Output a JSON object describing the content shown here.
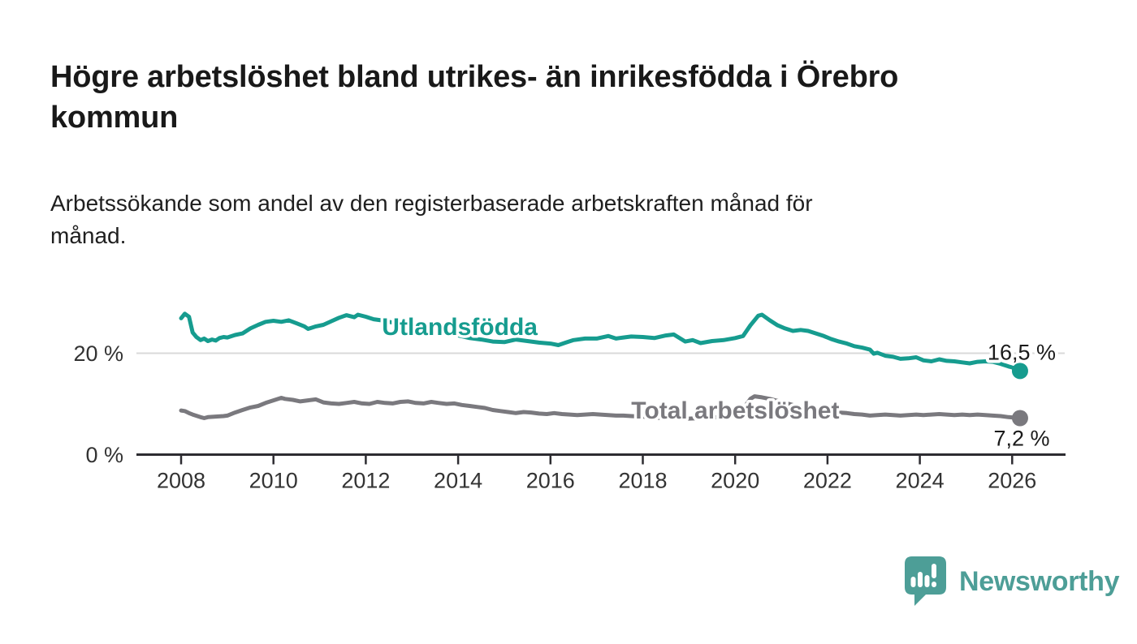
{
  "header": {
    "title": "Högre arbetslöshet bland utrikes- än inrikesfödda i Örebro kommun",
    "title_lines": [
      "Högre arbetslöshet bland utrikes- än inrikesfödda i Örebro",
      "kommun"
    ],
    "subtitle": "Arbetssökande som andel av den registerbaserade arbetskraften månad för månad.",
    "subtitle_lines": [
      "Arbetssökande som andel av den registerbaserade arbetskraften månad för",
      "månad."
    ]
  },
  "colors": {
    "teal": "#169c8f",
    "gray": "#7a797e",
    "grid": "#d9d9d9",
    "axis": "#2d2c31",
    "tick_text": "#333333",
    "value_text": "#1a1a1a",
    "logo_teal": "#4d9e97"
  },
  "chart_data": {
    "type": "line",
    "title": "Högre arbetslöshet bland utrikes- än inrikesfödda i Örebro kommun",
    "subtitle": "Arbetssökande som andel av den registerbaserade arbetskraften månad för månad.",
    "grid": "single horizontal gridline at 20 %",
    "legend_position": "inline labels on lines",
    "x_axis": {
      "range": [
        2007.05,
        2027.15
      ],
      "ticks": [
        2008,
        2010,
        2012,
        2014,
        2016,
        2018,
        2020,
        2022,
        2024,
        2026
      ]
    },
    "y_axis": {
      "range": [
        0,
        30
      ],
      "ticks": [
        {
          "value": 0,
          "label": "0 %"
        },
        {
          "value": 20,
          "label": "20 %"
        }
      ]
    },
    "series": [
      {
        "name": "Utlandsfödda",
        "color": "#169c8f",
        "end_label": "16,5 %",
        "end_label_side": "above",
        "label_pos": {
          "year": 2012.35,
          "value": 23.6
        },
        "points": [
          [
            2008.0,
            26.9
          ],
          [
            2008.08,
            27.8
          ],
          [
            2008.17,
            27.2
          ],
          [
            2008.25,
            24.1
          ],
          [
            2008.33,
            23.2
          ],
          [
            2008.42,
            22.6
          ],
          [
            2008.5,
            22.9
          ],
          [
            2008.58,
            22.4
          ],
          [
            2008.67,
            22.7
          ],
          [
            2008.75,
            22.5
          ],
          [
            2008.83,
            23.0
          ],
          [
            2008.92,
            23.2
          ],
          [
            2009.0,
            23.1
          ],
          [
            2009.17,
            23.6
          ],
          [
            2009.33,
            23.9
          ],
          [
            2009.5,
            24.9
          ],
          [
            2009.67,
            25.6
          ],
          [
            2009.83,
            26.2
          ],
          [
            2010.0,
            26.4
          ],
          [
            2010.17,
            26.2
          ],
          [
            2010.33,
            26.5
          ],
          [
            2010.5,
            25.9
          ],
          [
            2010.67,
            25.3
          ],
          [
            2010.75,
            24.8
          ],
          [
            2010.92,
            25.3
          ],
          [
            2011.08,
            25.6
          ],
          [
            2011.25,
            26.3
          ],
          [
            2011.42,
            27.0
          ],
          [
            2011.58,
            27.5
          ],
          [
            2011.75,
            27.1
          ],
          [
            2011.83,
            27.6
          ],
          [
            2012.0,
            27.2
          ],
          [
            2012.17,
            26.7
          ],
          [
            2012.33,
            26.5
          ],
          [
            2012.5,
            26.2
          ],
          [
            2012.75,
            25.8
          ],
          [
            2013.0,
            25.4
          ],
          [
            2013.25,
            24.9
          ],
          [
            2013.5,
            24.4
          ],
          [
            2013.75,
            23.9
          ],
          [
            2014.0,
            23.5
          ],
          [
            2014.25,
            23.0
          ],
          [
            2014.5,
            22.7
          ],
          [
            2014.75,
            22.3
          ],
          [
            2015.0,
            22.2
          ],
          [
            2015.25,
            22.7
          ],
          [
            2015.5,
            22.4
          ],
          [
            2015.75,
            22.1
          ],
          [
            2016.0,
            21.9
          ],
          [
            2016.17,
            21.6
          ],
          [
            2016.33,
            22.1
          ],
          [
            2016.5,
            22.6
          ],
          [
            2016.75,
            22.9
          ],
          [
            2017.0,
            22.9
          ],
          [
            2017.25,
            23.4
          ],
          [
            2017.42,
            22.9
          ],
          [
            2017.58,
            23.1
          ],
          [
            2017.75,
            23.3
          ],
          [
            2018.0,
            23.2
          ],
          [
            2018.25,
            23.0
          ],
          [
            2018.5,
            23.5
          ],
          [
            2018.67,
            23.7
          ],
          [
            2018.92,
            22.3
          ],
          [
            2019.08,
            22.6
          ],
          [
            2019.25,
            22.0
          ],
          [
            2019.5,
            22.4
          ],
          [
            2019.75,
            22.6
          ],
          [
            2020.0,
            23.0
          ],
          [
            2020.17,
            23.4
          ],
          [
            2020.33,
            25.5
          ],
          [
            2020.5,
            27.4
          ],
          [
            2020.58,
            27.6
          ],
          [
            2020.75,
            26.5
          ],
          [
            2020.92,
            25.5
          ],
          [
            2021.08,
            24.9
          ],
          [
            2021.25,
            24.4
          ],
          [
            2021.42,
            24.6
          ],
          [
            2021.58,
            24.4
          ],
          [
            2021.75,
            23.9
          ],
          [
            2021.92,
            23.4
          ],
          [
            2022.08,
            22.8
          ],
          [
            2022.25,
            22.3
          ],
          [
            2022.42,
            21.9
          ],
          [
            2022.58,
            21.4
          ],
          [
            2022.75,
            21.1
          ],
          [
            2022.92,
            20.7
          ],
          [
            2023.0,
            19.9
          ],
          [
            2023.08,
            20.1
          ],
          [
            2023.25,
            19.5
          ],
          [
            2023.42,
            19.3
          ],
          [
            2023.58,
            18.9
          ],
          [
            2023.75,
            19.0
          ],
          [
            2023.92,
            19.2
          ],
          [
            2024.08,
            18.6
          ],
          [
            2024.25,
            18.4
          ],
          [
            2024.42,
            18.8
          ],
          [
            2024.58,
            18.5
          ],
          [
            2024.75,
            18.4
          ],
          [
            2024.92,
            18.2
          ],
          [
            2025.08,
            18.0
          ],
          [
            2025.25,
            18.3
          ],
          [
            2025.42,
            18.4
          ],
          [
            2025.58,
            18.3
          ],
          [
            2025.75,
            17.9
          ],
          [
            2025.92,
            17.4
          ],
          [
            2026.0,
            17.2
          ],
          [
            2026.17,
            16.5
          ]
        ]
      },
      {
        "name": "Total arbetslöshet",
        "color": "#7a797e",
        "end_label": "7,2 %",
        "end_label_side": "below",
        "label_pos": {
          "year": 2017.75,
          "value": 7.1
        },
        "points": [
          [
            2008.0,
            8.7
          ],
          [
            2008.08,
            8.6
          ],
          [
            2008.17,
            8.2
          ],
          [
            2008.25,
            7.9
          ],
          [
            2008.42,
            7.4
          ],
          [
            2008.5,
            7.2
          ],
          [
            2008.58,
            7.4
          ],
          [
            2008.75,
            7.5
          ],
          [
            2008.92,
            7.6
          ],
          [
            2009.0,
            7.7
          ],
          [
            2009.17,
            8.3
          ],
          [
            2009.33,
            8.8
          ],
          [
            2009.5,
            9.3
          ],
          [
            2009.67,
            9.6
          ],
          [
            2009.83,
            10.2
          ],
          [
            2010.0,
            10.7
          ],
          [
            2010.17,
            11.2
          ],
          [
            2010.25,
            11.0
          ],
          [
            2010.42,
            10.8
          ],
          [
            2010.58,
            10.5
          ],
          [
            2010.75,
            10.7
          ],
          [
            2010.92,
            10.9
          ],
          [
            2011.08,
            10.3
          ],
          [
            2011.25,
            10.1
          ],
          [
            2011.42,
            10.0
          ],
          [
            2011.58,
            10.2
          ],
          [
            2011.75,
            10.4
          ],
          [
            2011.92,
            10.1
          ],
          [
            2012.08,
            10.0
          ],
          [
            2012.25,
            10.4
          ],
          [
            2012.42,
            10.2
          ],
          [
            2012.58,
            10.1
          ],
          [
            2012.75,
            10.4
          ],
          [
            2012.92,
            10.5
          ],
          [
            2013.08,
            10.2
          ],
          [
            2013.25,
            10.1
          ],
          [
            2013.42,
            10.4
          ],
          [
            2013.58,
            10.2
          ],
          [
            2013.75,
            10.0
          ],
          [
            2013.92,
            10.1
          ],
          [
            2014.08,
            9.8
          ],
          [
            2014.25,
            9.6
          ],
          [
            2014.42,
            9.4
          ],
          [
            2014.58,
            9.2
          ],
          [
            2014.75,
            8.8
          ],
          [
            2014.92,
            8.6
          ],
          [
            2015.08,
            8.4
          ],
          [
            2015.25,
            8.2
          ],
          [
            2015.42,
            8.4
          ],
          [
            2015.58,
            8.3
          ],
          [
            2015.75,
            8.1
          ],
          [
            2015.92,
            8.0
          ],
          [
            2016.08,
            8.2
          ],
          [
            2016.25,
            8.0
          ],
          [
            2016.42,
            7.9
          ],
          [
            2016.58,
            7.8
          ],
          [
            2016.75,
            7.9
          ],
          [
            2016.92,
            8.0
          ],
          [
            2017.08,
            7.9
          ],
          [
            2017.25,
            7.8
          ],
          [
            2017.42,
            7.7
          ],
          [
            2017.58,
            7.7
          ],
          [
            2017.75,
            7.6
          ],
          [
            2018.0,
            7.5
          ],
          [
            2018.25,
            7.3
          ],
          [
            2018.5,
            7.2
          ],
          [
            2018.75,
            7.2
          ],
          [
            2019.0,
            7.1
          ],
          [
            2019.25,
            7.2
          ],
          [
            2019.5,
            7.3
          ],
          [
            2019.75,
            7.5
          ],
          [
            2020.0,
            7.9
          ],
          [
            2020.17,
            9.0
          ],
          [
            2020.33,
            11.0
          ],
          [
            2020.42,
            11.5
          ],
          [
            2020.58,
            11.3
          ],
          [
            2020.75,
            11.0
          ],
          [
            2020.92,
            10.6
          ],
          [
            2021.08,
            10.2
          ],
          [
            2021.25,
            9.8
          ],
          [
            2021.42,
            9.5
          ],
          [
            2021.58,
            9.2
          ],
          [
            2021.75,
            8.9
          ],
          [
            2021.92,
            8.6
          ],
          [
            2022.08,
            8.4
          ],
          [
            2022.25,
            8.3
          ],
          [
            2022.42,
            8.2
          ],
          [
            2022.58,
            8.0
          ],
          [
            2022.75,
            7.9
          ],
          [
            2022.92,
            7.7
          ],
          [
            2023.08,
            7.8
          ],
          [
            2023.25,
            7.9
          ],
          [
            2023.42,
            7.8
          ],
          [
            2023.58,
            7.7
          ],
          [
            2023.75,
            7.8
          ],
          [
            2023.92,
            7.9
          ],
          [
            2024.08,
            7.8
          ],
          [
            2024.25,
            7.9
          ],
          [
            2024.42,
            8.0
          ],
          [
            2024.58,
            7.9
          ],
          [
            2024.75,
            7.8
          ],
          [
            2024.92,
            7.9
          ],
          [
            2025.08,
            7.8
          ],
          [
            2025.25,
            7.9
          ],
          [
            2025.42,
            7.8
          ],
          [
            2025.58,
            7.7
          ],
          [
            2025.75,
            7.6
          ],
          [
            2025.92,
            7.4
          ],
          [
            2026.17,
            7.2
          ]
        ]
      }
    ]
  },
  "footer": {
    "brand": "Newsworthy",
    "logo_icon": "speech-bubble-with-bar-chart-and-exclamation"
  }
}
